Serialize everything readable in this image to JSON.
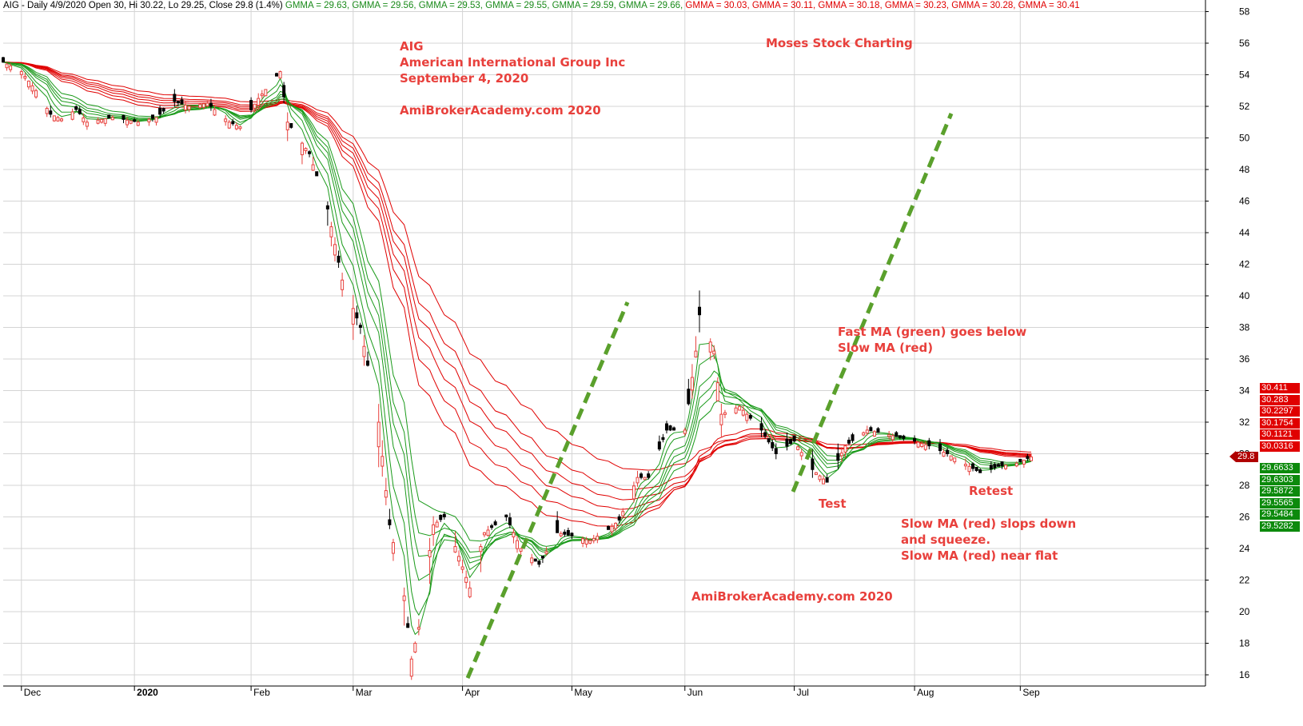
{
  "header": {
    "prefix": "AIG - Daily 4/9/2020 Open 30, Hi 30.22, Lo 29.25, Close 29.8 (1.4%)",
    "gmma": [
      {
        "text": "GMMA = 29.63,",
        "color": "green"
      },
      {
        "text": "GMMA = 29.56,",
        "color": "green"
      },
      {
        "text": "GMMA = 29.53,",
        "color": "green"
      },
      {
        "text": "GMMA = 29.55,",
        "color": "green"
      },
      {
        "text": "GMMA = 29.59,",
        "color": "green"
      },
      {
        "text": "GMMA = 29.66,",
        "color": "green"
      },
      {
        "text": "GMMA = 30.03,",
        "color": "red"
      },
      {
        "text": "GMMA = 30.11,",
        "color": "red"
      },
      {
        "text": "GMMA = 30.18,",
        "color": "red"
      },
      {
        "text": "GMMA = 30.23,",
        "color": "red"
      },
      {
        "text": "GMMA = 30.28,",
        "color": "red"
      },
      {
        "text": "GMMA = 30.41",
        "color": "red"
      }
    ]
  },
  "annotations": {
    "title_lines": [
      "AIG",
      "American International Group Inc",
      "September 4, 2020"
    ],
    "watermark1": "AmiBrokerAcademy.com  2020",
    "watermark2": "AmiBrokerAcademy.com  2020",
    "brand": "Moses Stock Charting",
    "fast_ma_lines": [
      "Fast MA (green) goes below",
      "Slow MA (red)"
    ],
    "test": "Test",
    "retest": "Retest",
    "slow_ma_lines": [
      "Slow MA (red) slops down",
      "and squeeze.",
      "Slow MA (red) near flat"
    ]
  },
  "price_tags": {
    "red": [
      "30.411",
      "30.283",
      "30.2297",
      "30.1754",
      "30.1121",
      "30.0316"
    ],
    "current": "29.8",
    "green": [
      "29.6633",
      "29.6303",
      "29.5872",
      "29.5565",
      "29.5484",
      "29.5282"
    ]
  },
  "colors": {
    "bull": "#e8403c",
    "bear": "#000000",
    "fast_ma": "#1a9a1a",
    "slow_ma": "#e00000",
    "trend": "#5aa02c",
    "grid": "#d4d4d4"
  },
  "chart_data": {
    "type": "candlestick",
    "symbol": "AIG",
    "interval": "Daily",
    "ylim": [
      15,
      59
    ],
    "y_ticks": [
      16,
      18,
      20,
      22,
      24,
      26,
      28,
      30,
      32,
      34,
      36,
      38,
      40,
      42,
      44,
      46,
      48,
      50,
      52,
      54,
      56,
      58
    ],
    "y_tick_labels": [
      "16",
      "18",
      "20",
      "22",
      "24",
      "26",
      "28",
      "30",
      "32",
      "34",
      "36",
      "38",
      "40",
      "42",
      "44",
      "46",
      "48",
      "50",
      "52",
      "54",
      "56",
      "58"
    ],
    "x_labels": [
      "Dec",
      "2020",
      "Feb",
      "Mar",
      "Apr",
      "May",
      "Jun",
      "Jul",
      "Aug",
      "Sep"
    ],
    "grid": true,
    "close_series": [
      {
        "d": "2019-11-27",
        "v": 54.8
      },
      {
        "d": "2019-12-02",
        "v": 54.2
      },
      {
        "d": "2019-12-06",
        "v": 53.0
      },
      {
        "d": "2019-12-10",
        "v": 51.5
      },
      {
        "d": "2019-12-13",
        "v": 51.2
      },
      {
        "d": "2019-12-17",
        "v": 51.8
      },
      {
        "d": "2019-12-20",
        "v": 51.0
      },
      {
        "d": "2019-12-27",
        "v": 51.3
      },
      {
        "d": "2020-01-03",
        "v": 51.0
      },
      {
        "d": "2020-01-08",
        "v": 51.3
      },
      {
        "d": "2020-01-13",
        "v": 52.3
      },
      {
        "d": "2020-01-17",
        "v": 52.0
      },
      {
        "d": "2020-01-22",
        "v": 52.2
      },
      {
        "d": "2020-01-28",
        "v": 51.0
      },
      {
        "d": "2020-01-31",
        "v": 50.7
      },
      {
        "d": "2020-02-05",
        "v": 52.5
      },
      {
        "d": "2020-02-11",
        "v": 54.2
      },
      {
        "d": "2020-02-13",
        "v": 51.0
      },
      {
        "d": "2020-02-19",
        "v": 49.0
      },
      {
        "d": "2020-02-24",
        "v": 45.5
      },
      {
        "d": "2020-02-28",
        "v": 41.0
      },
      {
        "d": "2020-03-04",
        "v": 38.0
      },
      {
        "d": "2020-03-09",
        "v": 32.0
      },
      {
        "d": "2020-03-12",
        "v": 25.5
      },
      {
        "d": "2020-03-16",
        "v": 21.0
      },
      {
        "d": "2020-03-18",
        "v": 17.0
      },
      {
        "d": "2020-03-20",
        "v": 19.0
      },
      {
        "d": "2020-03-24",
        "v": 25.5
      },
      {
        "d": "2020-03-27",
        "v": 26.0
      },
      {
        "d": "2020-03-31",
        "v": 23.5
      },
      {
        "d": "2020-04-03",
        "v": 21.5
      },
      {
        "d": "2020-04-07",
        "v": 25.0
      },
      {
        "d": "2020-04-13",
        "v": 26.0
      },
      {
        "d": "2020-04-17",
        "v": 24.0
      },
      {
        "d": "2020-04-22",
        "v": 23.0
      },
      {
        "d": "2020-04-27",
        "v": 25.0
      },
      {
        "d": "2020-05-01",
        "v": 24.8
      },
      {
        "d": "2020-05-06",
        "v": 24.5
      },
      {
        "d": "2020-05-11",
        "v": 25.2
      },
      {
        "d": "2020-05-14",
        "v": 25.8
      },
      {
        "d": "2020-05-19",
        "v": 28.5
      },
      {
        "d": "2020-05-22",
        "v": 28.5
      },
      {
        "d": "2020-05-27",
        "v": 31.5
      },
      {
        "d": "2020-06-01",
        "v": 31.5
      },
      {
        "d": "2020-06-04",
        "v": 36.5
      },
      {
        "d": "2020-06-05",
        "v": 38.8
      },
      {
        "d": "2020-06-09",
        "v": 36.5
      },
      {
        "d": "2020-06-11",
        "v": 32.5
      },
      {
        "d": "2020-06-16",
        "v": 33.0
      },
      {
        "d": "2020-06-22",
        "v": 31.5
      },
      {
        "d": "2020-06-26",
        "v": 30.0
      },
      {
        "d": "2020-07-01",
        "v": 30.8
      },
      {
        "d": "2020-07-06",
        "v": 29.0
      },
      {
        "d": "2020-07-10",
        "v": 28.2
      },
      {
        "d": "2020-07-15",
        "v": 30.5
      },
      {
        "d": "2020-07-21",
        "v": 31.5
      },
      {
        "d": "2020-07-27",
        "v": 31.2
      },
      {
        "d": "2020-08-03",
        "v": 30.8
      },
      {
        "d": "2020-08-07",
        "v": 30.5
      },
      {
        "d": "2020-08-12",
        "v": 30.0
      },
      {
        "d": "2020-08-18",
        "v": 29.2
      },
      {
        "d": "2020-08-21",
        "v": 28.8
      },
      {
        "d": "2020-08-26",
        "v": 29.2
      },
      {
        "d": "2020-08-31",
        "v": 29.4
      },
      {
        "d": "2020-09-04",
        "v": 29.8
      }
    ]
  }
}
